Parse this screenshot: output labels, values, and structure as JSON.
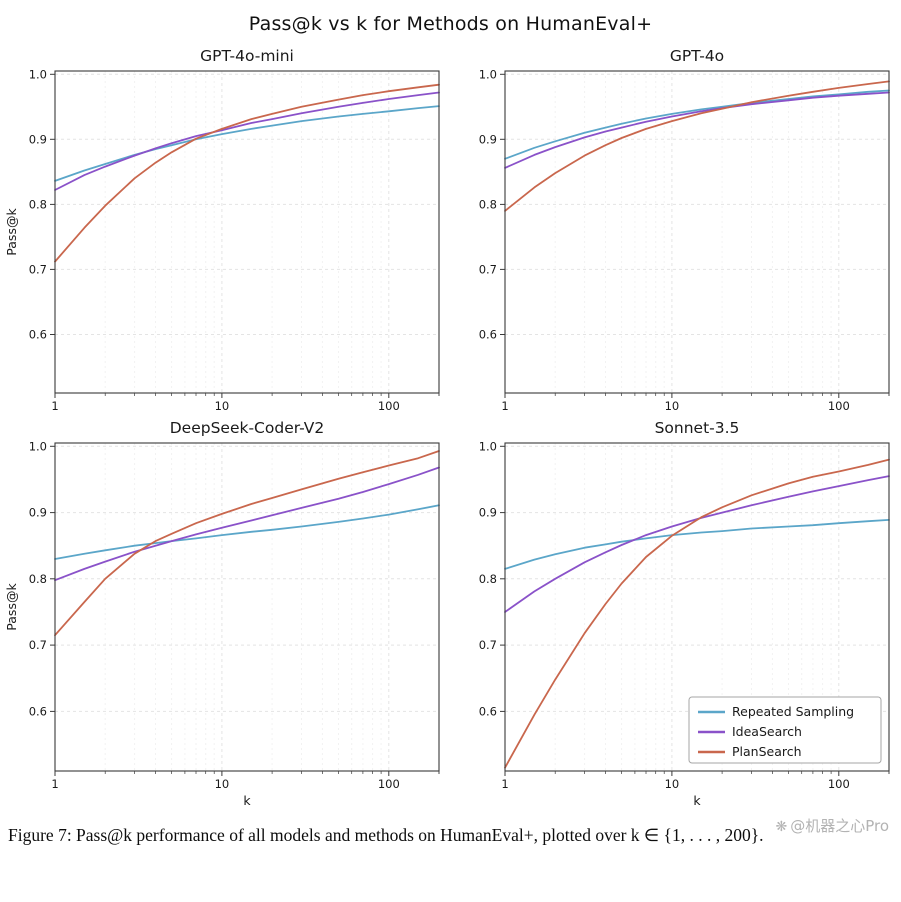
{
  "figure": {
    "title": "Pass@k vs k for Methods on HumanEval+",
    "caption": "Figure 7: Pass@k performance of all models and methods on HumanEval+, plotted over k ∈ {1, . . . , 200}.",
    "watermark": {
      "icon": "machine-heart-logo",
      "icon_glyph": "❋",
      "text": "@机器之心Pro"
    }
  },
  "legend": {
    "position": "lower-right of Sonnet-3.5 subplot",
    "entries": [
      {
        "label": "Repeated Sampling",
        "color": "#5ba6c9"
      },
      {
        "label": "IdeaSearch",
        "color": "#8a52c9"
      },
      {
        "label": "PlanSearch",
        "color": "#c9674d"
      }
    ]
  },
  "chart_data": [
    {
      "type": "line",
      "title": "GPT-4o-mini",
      "xlabel": "",
      "ylabel": "Pass@k",
      "xscale": "log",
      "xlim": [
        1,
        200
      ],
      "ylim": [
        0.51,
        1.005
      ],
      "xticks": [
        1,
        10,
        100
      ],
      "yticks": [
        0.6,
        0.7,
        0.8,
        0.9,
        1.0
      ],
      "grid": true,
      "legend": false,
      "x": [
        1,
        1.5,
        2,
        3,
        4,
        5,
        7,
        10,
        15,
        20,
        30,
        50,
        70,
        100,
        150,
        200
      ],
      "series": [
        {
          "name": "Repeated Sampling",
          "color": "#5ba6c9",
          "values": [
            0.836,
            0.852,
            0.862,
            0.876,
            0.885,
            0.891,
            0.9,
            0.908,
            0.916,
            0.921,
            0.928,
            0.935,
            0.939,
            0.943,
            0.948,
            0.951
          ]
        },
        {
          "name": "IdeaSearch",
          "color": "#8a52c9",
          "values": [
            0.822,
            0.845,
            0.858,
            0.875,
            0.886,
            0.894,
            0.905,
            0.914,
            0.925,
            0.931,
            0.94,
            0.95,
            0.956,
            0.962,
            0.968,
            0.972
          ]
        },
        {
          "name": "PlanSearch",
          "color": "#c9674d",
          "values": [
            0.712,
            0.764,
            0.798,
            0.84,
            0.864,
            0.88,
            0.901,
            0.916,
            0.931,
            0.939,
            0.95,
            0.961,
            0.968,
            0.974,
            0.98,
            0.984
          ]
        }
      ]
    },
    {
      "type": "line",
      "title": "GPT-4o",
      "xlabel": "",
      "ylabel": "",
      "xscale": "log",
      "xlim": [
        1,
        200
      ],
      "ylim": [
        0.51,
        1.005
      ],
      "xticks": [
        1,
        10,
        100
      ],
      "yticks": [
        0.6,
        0.7,
        0.8,
        0.9,
        1.0
      ],
      "grid": true,
      "legend": false,
      "x": [
        1,
        1.5,
        2,
        3,
        4,
        5,
        7,
        10,
        15,
        20,
        30,
        50,
        70,
        100,
        150,
        200
      ],
      "series": [
        {
          "name": "Repeated Sampling",
          "color": "#5ba6c9",
          "values": [
            0.87,
            0.887,
            0.897,
            0.91,
            0.918,
            0.924,
            0.932,
            0.939,
            0.946,
            0.95,
            0.956,
            0.962,
            0.966,
            0.969,
            0.973,
            0.975
          ]
        },
        {
          "name": "IdeaSearch",
          "color": "#8a52c9",
          "values": [
            0.856,
            0.876,
            0.888,
            0.903,
            0.912,
            0.918,
            0.927,
            0.935,
            0.943,
            0.948,
            0.954,
            0.96,
            0.964,
            0.967,
            0.97,
            0.972
          ]
        },
        {
          "name": "PlanSearch",
          "color": "#c9674d",
          "values": [
            0.79,
            0.826,
            0.848,
            0.875,
            0.891,
            0.902,
            0.916,
            0.928,
            0.94,
            0.947,
            0.957,
            0.967,
            0.973,
            0.979,
            0.985,
            0.989
          ]
        }
      ]
    },
    {
      "type": "line",
      "title": "DeepSeek-Coder-V2",
      "xlabel": "k",
      "ylabel": "Pass@k",
      "xscale": "log",
      "xlim": [
        1,
        200
      ],
      "ylim": [
        0.51,
        1.005
      ],
      "xticks": [
        1,
        10,
        100
      ],
      "yticks": [
        0.6,
        0.7,
        0.8,
        0.9,
        1.0
      ],
      "grid": true,
      "legend": false,
      "x": [
        1,
        1.5,
        2,
        3,
        4,
        5,
        7,
        10,
        15,
        20,
        30,
        50,
        70,
        100,
        150,
        200
      ],
      "series": [
        {
          "name": "Repeated Sampling",
          "color": "#5ba6c9",
          "values": [
            0.83,
            0.838,
            0.843,
            0.85,
            0.854,
            0.857,
            0.861,
            0.866,
            0.871,
            0.874,
            0.879,
            0.886,
            0.891,
            0.897,
            0.905,
            0.911
          ]
        },
        {
          "name": "IdeaSearch",
          "color": "#8a52c9",
          "values": [
            0.798,
            0.815,
            0.826,
            0.841,
            0.85,
            0.857,
            0.867,
            0.877,
            0.888,
            0.896,
            0.907,
            0.921,
            0.931,
            0.943,
            0.957,
            0.968
          ]
        },
        {
          "name": "PlanSearch",
          "color": "#c9674d",
          "values": [
            0.715,
            0.765,
            0.8,
            0.838,
            0.857,
            0.868,
            0.884,
            0.898,
            0.913,
            0.922,
            0.935,
            0.951,
            0.961,
            0.971,
            0.982,
            0.993
          ]
        }
      ]
    },
    {
      "type": "line",
      "title": "Sonnet-3.5",
      "xlabel": "k",
      "ylabel": "",
      "xscale": "log",
      "xlim": [
        1,
        200
      ],
      "ylim": [
        0.51,
        1.005
      ],
      "xticks": [
        1,
        10,
        100
      ],
      "yticks": [
        0.6,
        0.7,
        0.8,
        0.9,
        1.0
      ],
      "grid": true,
      "legend": true,
      "x": [
        1,
        1.5,
        2,
        3,
        4,
        5,
        7,
        10,
        15,
        20,
        30,
        50,
        70,
        100,
        150,
        200
      ],
      "series": [
        {
          "name": "Repeated Sampling",
          "color": "#5ba6c9",
          "values": [
            0.815,
            0.829,
            0.837,
            0.847,
            0.852,
            0.856,
            0.861,
            0.866,
            0.87,
            0.872,
            0.876,
            0.879,
            0.881,
            0.884,
            0.887,
            0.889
          ]
        },
        {
          "name": "IdeaSearch",
          "color": "#8a52c9",
          "values": [
            0.75,
            0.781,
            0.8,
            0.825,
            0.84,
            0.851,
            0.866,
            0.879,
            0.892,
            0.9,
            0.911,
            0.924,
            0.932,
            0.94,
            0.949,
            0.955
          ]
        },
        {
          "name": "PlanSearch",
          "color": "#c9674d",
          "values": [
            0.515,
            0.595,
            0.648,
            0.718,
            0.762,
            0.793,
            0.833,
            0.865,
            0.893,
            0.908,
            0.926,
            0.944,
            0.954,
            0.962,
            0.972,
            0.98
          ]
        }
      ]
    }
  ]
}
